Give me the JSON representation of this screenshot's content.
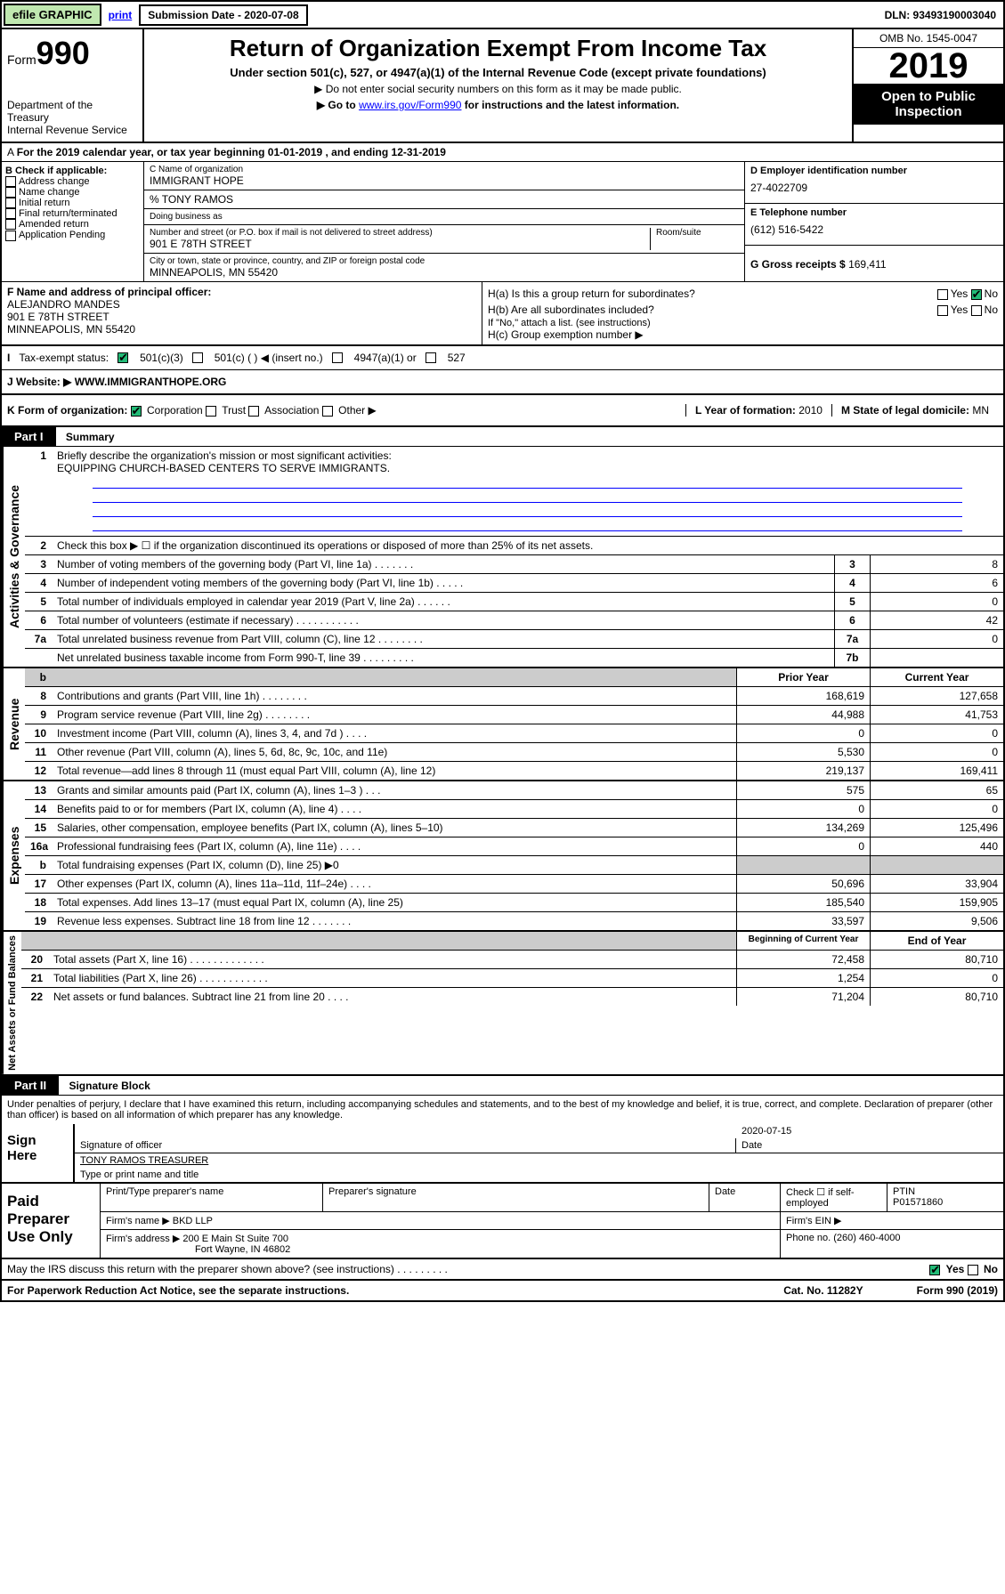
{
  "topbar": {
    "efile": "efile GRAPHIC",
    "print": "print",
    "subdate_lbl": "Submission Date - 2020-07-08",
    "dln": "DLN: 93493190003040"
  },
  "header": {
    "form": "Form",
    "num": "990",
    "dept": "Department of the Treasury\nInternal Revenue Service",
    "title": "Return of Organization Exempt From Income Tax",
    "sub1": "Under section 501(c), 527, or 4947(a)(1) of the Internal Revenue Code (except private foundations)",
    "sub2a": "▶ Do not enter social security numbers on this form as it may be made public.",
    "sub2b": "▶ Go to ",
    "sub2link": "www.irs.gov/Form990",
    "sub2c": " for instructions and the latest information.",
    "omb": "OMB No. 1545-0047",
    "year": "2019",
    "open": "Open to Public Inspection"
  },
  "period": "For the 2019 calendar year, or tax year beginning 01-01-2019     , and ending 12-31-2019",
  "B": {
    "lbl": "B Check if applicable:",
    "items": [
      "Address change",
      "Name change",
      "Initial return",
      "Final return/terminated",
      "Amended return",
      "Application Pending"
    ]
  },
  "C": {
    "name_lbl": "C Name of organization",
    "name": "IMMIGRANT HOPE",
    "care": "% TONY RAMOS",
    "dba_lbl": "Doing business as",
    "dba": "",
    "addr_lbl": "Number and street (or P.O. box if mail is not delivered to street address)",
    "addr": "901 E 78TH STREET",
    "room_lbl": "Room/suite",
    "city_lbl": "City or town, state or province, country, and ZIP or foreign postal code",
    "city": "MINNEAPOLIS, MN  55420"
  },
  "D": {
    "lbl": "D Employer identification number",
    "val": "27-4022709"
  },
  "E": {
    "lbl": "E Telephone number",
    "val": "(612) 516-5422"
  },
  "G": {
    "lbl": "G Gross receipts $",
    "val": "169,411"
  },
  "F": {
    "lbl": "F  Name and address of principal officer:",
    "name": "ALEJANDRO MANDES",
    "addr": "901 E 78TH STREET",
    "city": "MINNEAPOLIS, MN  55420"
  },
  "H": {
    "a": "H(a)  Is this a group return for subordinates?",
    "a_yes": "Yes",
    "a_no": "No",
    "b": "H(b)  Are all subordinates included?",
    "b_yes": "Yes",
    "b_no": "No",
    "note": "If \"No,\" attach a list. (see instructions)",
    "c": "H(c)  Group exemption number ▶"
  },
  "I": {
    "lbl": "Tax-exempt status:",
    "o1": "501(c)(3)",
    "o2": "501(c) (  ) ◀ (insert no.)",
    "o3": "4947(a)(1) or",
    "o4": "527"
  },
  "J": {
    "lbl": "Website: ▶",
    "val": "WWW.IMMIGRANTHOPE.ORG"
  },
  "K": {
    "lbl": "K Form of organization:",
    "o1": "Corporation",
    "o2": "Trust",
    "o3": "Association",
    "o4": "Other ▶"
  },
  "L": {
    "lbl": "L Year of formation:",
    "val": "2010"
  },
  "M": {
    "lbl": "M State of legal domicile:",
    "val": "MN"
  },
  "part1": {
    "title": "Part I",
    "subtitle": "Summary",
    "l1": "Briefly describe the organization's mission or most significant activities:",
    "l1v": "EQUIPPING CHURCH-BASED CENTERS TO SERVE IMMIGRANTS.",
    "l2": "Check this box ▶ ☐  if the organization discontinued its operations or disposed of more than 25% of its net assets.",
    "hdr_prior": "Prior Year",
    "hdr_curr": "Current Year",
    "hdr_beg": "Beginning of Current Year",
    "hdr_end": "End of Year",
    "rows_ag": [
      {
        "n": "3",
        "d": "Number of voting members of the governing body (Part VI, line 1a)   .    .    .    .    .    .    .",
        "nc": "3",
        "v": "8"
      },
      {
        "n": "4",
        "d": "Number of independent voting members of the governing body (Part VI, line 1b)   .    .    .    .    .",
        "nc": "4",
        "v": "6"
      },
      {
        "n": "5",
        "d": "Total number of individuals employed in calendar year 2019 (Part V, line 2a)   .    .    .    .    .    .",
        "nc": "5",
        "v": "0"
      },
      {
        "n": "6",
        "d": "Total number of volunteers (estimate if necessary)   .    .    .    .    .    .    .    .    .    .    .",
        "nc": "6",
        "v": "42"
      },
      {
        "n": "7a",
        "d": "Total unrelated business revenue from Part VIII, column (C), line 12   .    .    .    .    .    .    .    .",
        "nc": "7a",
        "v": "0"
      },
      {
        "n": "",
        "d": "Net unrelated business taxable income from Form 990-T, line 39   .    .    .    .    .    .    .    .    .",
        "nc": "7b",
        "v": ""
      }
    ],
    "rows_rev": [
      {
        "n": "8",
        "d": "Contributions and grants (Part VIII, line 1h)   .    .    .    .    .    .    .    .",
        "p": "168,619",
        "c": "127,658"
      },
      {
        "n": "9",
        "d": "Program service revenue (Part VIII, line 2g)   .    .    .    .    .    .    .    .",
        "p": "44,988",
        "c": "41,753"
      },
      {
        "n": "10",
        "d": "Investment income (Part VIII, column (A), lines 3, 4, and 7d )   .    .    .    .",
        "p": "0",
        "c": "0"
      },
      {
        "n": "11",
        "d": "Other revenue (Part VIII, column (A), lines 5, 6d, 8c, 9c, 10c, and 11e)",
        "p": "5,530",
        "c": "0"
      },
      {
        "n": "12",
        "d": "Total revenue—add lines 8 through 11 (must equal Part VIII, column (A), line 12)",
        "p": "219,137",
        "c": "169,411"
      }
    ],
    "rows_exp": [
      {
        "n": "13",
        "d": "Grants and similar amounts paid (Part IX, column (A), lines 1–3 )   .    .    .",
        "p": "575",
        "c": "65"
      },
      {
        "n": "14",
        "d": "Benefits paid to or for members (Part IX, column (A), line 4)   .    .    .    .",
        "p": "0",
        "c": "0"
      },
      {
        "n": "15",
        "d": "Salaries, other compensation, employee benefits (Part IX, column (A), lines 5–10)",
        "p": "134,269",
        "c": "125,496"
      },
      {
        "n": "16a",
        "d": "Professional fundraising fees (Part IX, column (A), line 11e)   .    .    .    .",
        "p": "0",
        "c": "440"
      },
      {
        "n": "b",
        "d": "Total fundraising expenses (Part IX, column (D), line 25) ▶0",
        "p": "",
        "c": "",
        "gray": true
      },
      {
        "n": "17",
        "d": "Other expenses (Part IX, column (A), lines 11a–11d, 11f–24e)   .    .    .    .",
        "p": "50,696",
        "c": "33,904"
      },
      {
        "n": "18",
        "d": "Total expenses. Add lines 13–17 (must equal Part IX, column (A), line 25)",
        "p": "185,540",
        "c": "159,905"
      },
      {
        "n": "19",
        "d": "Revenue less expenses. Subtract line 18 from line 12   .    .    .    .    .    .    .",
        "p": "33,597",
        "c": "9,506"
      }
    ],
    "rows_na": [
      {
        "n": "20",
        "d": "Total assets (Part X, line 16)   .    .    .    .    .    .    .    .    .    .    .    .    .",
        "p": "72,458",
        "c": "80,710"
      },
      {
        "n": "21",
        "d": "Total liabilities (Part X, line 26)   .    .    .    .    .    .    .    .    .    .    .    .",
        "p": "1,254",
        "c": "0"
      },
      {
        "n": "22",
        "d": "Net assets or fund balances. Subtract line 21 from line 20   .    .    .    .",
        "p": "71,204",
        "c": "80,710"
      }
    ],
    "side_ag": "Activities & Governance",
    "side_rev": "Revenue",
    "side_exp": "Expenses",
    "side_na": "Net Assets or Fund Balances"
  },
  "part2": {
    "title": "Part II",
    "subtitle": "Signature Block",
    "decl": "Under penalties of perjury, I declare that I have examined this return, including accompanying schedules and statements, and to the best of my knowledge and belief, it is true, correct, and complete. Declaration of preparer (other than officer) is based on all information of which preparer has any knowledge.",
    "sign": "Sign Here",
    "sig_off": "Signature of officer",
    "date": "2020-07-15",
    "date_lbl": "Date",
    "name": "TONY RAMOS  TREASURER",
    "name_lbl": "Type or print name and title",
    "paid": "Paid Preparer Use Only",
    "pname_lbl": "Print/Type preparer's name",
    "psig_lbl": "Preparer's signature",
    "pdate_lbl": "Date",
    "check_lbl": "Check ☐ if self-employed",
    "ptin_lbl": "PTIN",
    "ptin": "P01571860",
    "firm_lbl": "Firm's name  ▶",
    "firm": "BKD LLP",
    "ein_lbl": "Firm's EIN ▶",
    "addr_lbl": "Firm's address ▶",
    "addr1": "200 E Main St Suite 700",
    "addr2": "Fort Wayne, IN  46802",
    "phone_lbl": "Phone no.",
    "phone": "(260) 460-4000",
    "may": "May the IRS discuss this return with the preparer shown above? (see instructions)    .    .    .    .    .    .    .    .    .",
    "yes": "Yes",
    "no": "No"
  },
  "footer": {
    "pra": "For Paperwork Reduction Act Notice, see the separate instructions.",
    "cat": "Cat. No. 11282Y",
    "form": "Form 990 (2019)"
  }
}
